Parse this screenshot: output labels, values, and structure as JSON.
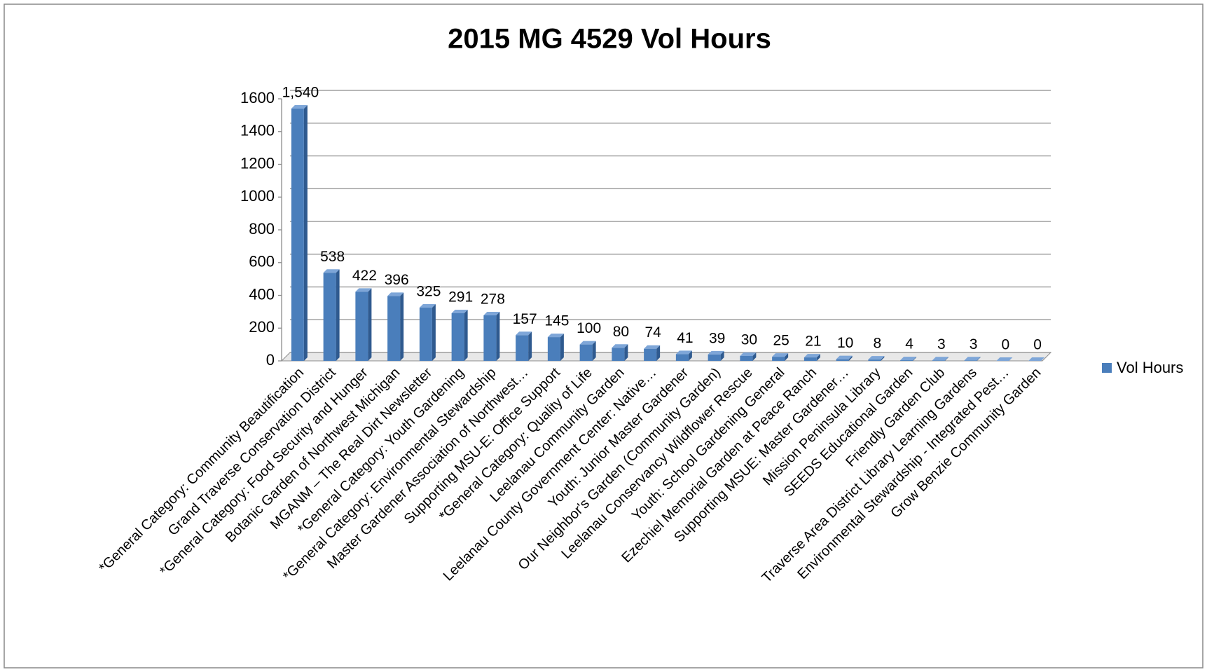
{
  "chart_data": {
    "type": "bar",
    "title": "2015 MG 4529 Vol Hours",
    "categories": [
      "*General Category: Community Beautification",
      "Grand Traverse Conservation District",
      "*General Category: Food Security and Hunger",
      "Botanic Garden of Northwest Michigan",
      "MGANM – The Real Dirt Newsletter",
      "*General Category: Youth Gardening",
      "*General Category: Environmental Stewardship",
      "Master Gardener Association of Northwest…",
      "Supporting MSU-E: Office Support",
      "*General Category: Quality of Life",
      "Leelanau Community Garden",
      "Leelanau County Government Center: Native…",
      "Youth: Junior Master Gardener",
      "Our Neighbor's Garden (Community Garden)",
      "Leelanau Conservancy Wildflower Rescue",
      "Youth: School Gardening General",
      "Ezechiel Memorial Garden at Peace Ranch",
      "Supporting MSUE: Master Gardener…",
      "Mission Peninsula Library",
      "SEEDS Educational Garden",
      "Friendly Garden Club",
      "Traverse Area District Library Learning Gardens",
      "Environmental Stewardship - Integrated Pest…",
      "Grow Benzie Community Garden"
    ],
    "series": [
      {
        "name": "Vol Hours",
        "color": "#4a7ebb",
        "values": [
          1540,
          538,
          422,
          396,
          325,
          291,
          278,
          157,
          145,
          100,
          80,
          74,
          41,
          39,
          30,
          25,
          21,
          10,
          8,
          4,
          3,
          3,
          0,
          0
        ],
        "value_labels": [
          "1,540",
          "538",
          "422",
          "396",
          "325",
          "291",
          "278",
          "157",
          "145",
          "100",
          "80",
          "74",
          "41",
          "39",
          "30",
          "25",
          "21",
          "10",
          "8",
          "4",
          "3",
          "3",
          "0",
          "0"
        ]
      }
    ],
    "ylim": [
      0,
      1600
    ],
    "yticks": [
      0,
      200,
      400,
      600,
      800,
      1000,
      1200,
      1400,
      1600
    ],
    "grid": true,
    "legend": "right"
  }
}
